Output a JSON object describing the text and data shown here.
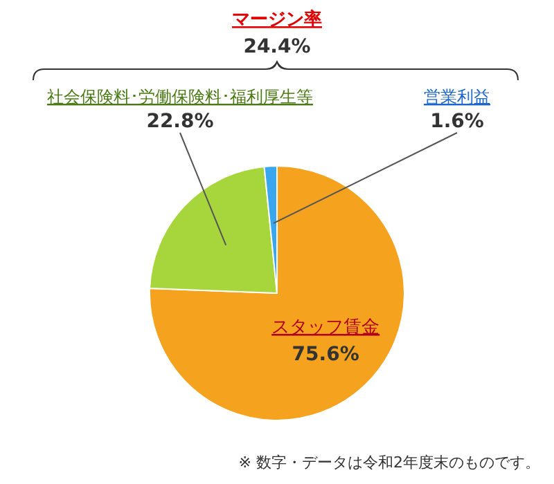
{
  "chart_data": {
    "type": "pie",
    "categories": [
      "スタッフ賃金",
      "社会保険料･労働保険料･福利厚生等",
      "営業利益"
    ],
    "values": [
      75.6,
      22.8,
      1.6
    ],
    "colors": [
      "#f5a21e",
      "#a6d63c",
      "#3aa6ee"
    ],
    "value_labels": [
      "75.6%",
      "22.8%",
      "1.6%"
    ],
    "annotations": [
      "マージン率",
      "24.4%",
      "※ 数字・データは令和2年度末のものです。"
    ]
  }
}
